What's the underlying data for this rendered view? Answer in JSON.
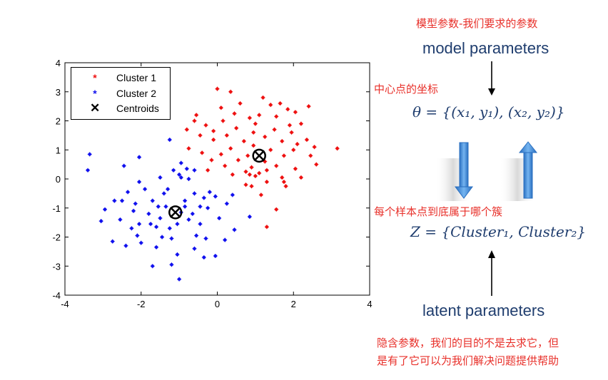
{
  "annotations": {
    "top_red": "模型参数-我们要求的参数",
    "model_parameters": "model parameters",
    "center_coords": "中心点的坐标",
    "theta_equation": "θ = {(x₁, y₁), (x₂, y₂)}",
    "which_cluster": "每个样本点到底属于哪个簇",
    "z_equation": "Z = {Cluster₁,  Cluster₂}",
    "latent_parameters": "latent parameters",
    "hidden_note_line1": "隐含参数，我们的目的不是去求它，但",
    "hidden_note_line2": "是有了它可以为我们解决问题提供帮助"
  },
  "colors": {
    "red_text": "#e8302a",
    "navy_text": "#1f3d6e",
    "cluster1": "#ee1111",
    "cluster2": "#1111ee",
    "arrow_blue": "#3a86d6"
  },
  "chart_data": {
    "type": "scatter",
    "title": "",
    "xlabel": "",
    "ylabel": "",
    "xlim": [
      -4,
      4
    ],
    "ylim": [
      -4,
      4
    ],
    "xticks": [
      "-4",
      "-2",
      "0",
      "2",
      "4"
    ],
    "yticks": [
      "4",
      "3",
      "2",
      "1",
      "0",
      "-1",
      "-2",
      "-3",
      "-4"
    ],
    "legend_position": "top-left",
    "legend": [
      "Cluster 1",
      "Cluster 2",
      "Centroids"
    ],
    "series": [
      {
        "name": "Cluster 1",
        "color": "#ee1111",
        "points": [
          [
            0.0,
            3.1
          ],
          [
            0.35,
            3.0
          ],
          [
            1.2,
            2.8
          ],
          [
            0.6,
            2.6
          ],
          [
            1.4,
            2.55
          ],
          [
            1.65,
            2.6
          ],
          [
            1.85,
            2.4
          ],
          [
            2.4,
            2.5
          ],
          [
            0.1,
            2.45
          ],
          [
            -0.55,
            2.2
          ],
          [
            0.45,
            2.25
          ],
          [
            1.1,
            2.2
          ],
          [
            2.05,
            2.3
          ],
          [
            0.85,
            2.1
          ],
          [
            1.55,
            2.15
          ],
          [
            -0.6,
            2.0
          ],
          [
            0.15,
            2.0
          ],
          [
            -0.3,
            1.85
          ],
          [
            1.0,
            1.9
          ],
          [
            1.9,
            1.85
          ],
          [
            2.2,
            1.9
          ],
          [
            -0.8,
            1.7
          ],
          [
            0.5,
            1.75
          ],
          [
            1.5,
            1.7
          ],
          [
            -0.1,
            1.65
          ],
          [
            0.95,
            1.6
          ],
          [
            1.95,
            1.6
          ],
          [
            -0.45,
            1.5
          ],
          [
            0.25,
            1.5
          ],
          [
            1.25,
            1.45
          ],
          [
            2.35,
            1.35
          ],
          [
            -0.1,
            1.35
          ],
          [
            0.7,
            1.3
          ],
          [
            1.7,
            1.3
          ],
          [
            2.1,
            1.2
          ],
          [
            2.55,
            1.1
          ],
          [
            -0.75,
            1.05
          ],
          [
            0.35,
            1.05
          ],
          [
            0.95,
            1.15
          ],
          [
            1.4,
            1.0
          ],
          [
            2.0,
            1.0
          ],
          [
            3.15,
            1.05
          ],
          [
            -0.4,
            0.9
          ],
          [
            0.1,
            0.85
          ],
          [
            0.8,
            0.8
          ],
          [
            1.75,
            0.8
          ],
          [
            2.45,
            0.8
          ],
          [
            -0.15,
            0.65
          ],
          [
            0.55,
            0.65
          ],
          [
            1.25,
            0.6
          ],
          [
            2.6,
            0.5
          ],
          [
            0.2,
            0.45
          ],
          [
            0.9,
            0.4
          ],
          [
            1.55,
            0.45
          ],
          [
            -0.25,
            0.3
          ],
          [
            0.75,
            0.25
          ],
          [
            1.3,
            0.3
          ],
          [
            2.05,
            0.35
          ],
          [
            0.4,
            0.15
          ],
          [
            1.0,
            0.1
          ],
          [
            1.7,
            0.05
          ],
          [
            2.2,
            0.05
          ],
          [
            1.3,
            -0.1
          ],
          [
            0.9,
            -0.25
          ],
          [
            1.75,
            -0.1
          ],
          [
            1.15,
            -0.55
          ],
          [
            1.55,
            -1.05
          ],
          [
            1.3,
            -1.65
          ],
          [
            0.75,
            -0.2
          ],
          [
            1.8,
            -0.25
          ],
          [
            0.85,
            0.15
          ],
          [
            1.1,
            0.2
          ]
        ]
      },
      {
        "name": "Cluster 2",
        "color": "#1111ee",
        "points": [
          [
            -3.35,
            0.85
          ],
          [
            -3.4,
            0.3
          ],
          [
            -1.25,
            1.35
          ],
          [
            -2.05,
            0.75
          ],
          [
            -0.95,
            0.55
          ],
          [
            -0.8,
            0.35
          ],
          [
            -1.15,
            0.3
          ],
          [
            -0.6,
            0.3
          ],
          [
            -2.45,
            0.45
          ],
          [
            -1.0,
            0.15
          ],
          [
            -1.5,
            0.05
          ],
          [
            -0.75,
            0.0
          ],
          [
            -0.2,
            -0.45
          ],
          [
            -0.05,
            -0.6
          ],
          [
            -0.6,
            -0.5
          ],
          [
            -2.05,
            -0.1
          ],
          [
            -2.35,
            -0.45
          ],
          [
            -2.15,
            -0.85
          ],
          [
            -2.7,
            -0.75
          ],
          [
            -2.95,
            -1.05
          ],
          [
            -1.3,
            -0.35
          ],
          [
            -0.45,
            -0.95
          ],
          [
            -1.7,
            -0.75
          ],
          [
            -0.85,
            -0.75
          ],
          [
            -2.2,
            -1.1
          ],
          [
            -1.8,
            -1.2
          ],
          [
            -1.35,
            -0.95
          ],
          [
            -0.25,
            -1.0
          ],
          [
            0.25,
            -0.85
          ],
          [
            0.4,
            -0.55
          ],
          [
            -3.05,
            -1.45
          ],
          [
            -2.55,
            -1.4
          ],
          [
            -1.5,
            -1.35
          ],
          [
            -0.95,
            -1.15
          ],
          [
            -0.75,
            -1.4
          ],
          [
            -2.25,
            -1.7
          ],
          [
            -1.75,
            -1.55
          ],
          [
            -1.05,
            -1.55
          ],
          [
            -0.45,
            -1.55
          ],
          [
            0.05,
            -1.35
          ],
          [
            0.45,
            -1.75
          ],
          [
            -2.75,
            -2.15
          ],
          [
            -2.1,
            -1.95
          ],
          [
            -1.45,
            -2.0
          ],
          [
            -0.55,
            -1.95
          ],
          [
            -0.3,
            -2.05
          ],
          [
            -1.2,
            -2.05
          ],
          [
            -2.0,
            -2.2
          ],
          [
            -2.4,
            -2.3
          ],
          [
            -1.6,
            -2.35
          ],
          [
            -0.6,
            -2.4
          ],
          [
            0.2,
            -2.1
          ],
          [
            -1.05,
            -2.6
          ],
          [
            -0.35,
            -2.7
          ],
          [
            -1.7,
            -3.0
          ],
          [
            -1.2,
            -2.95
          ],
          [
            -0.05,
            -2.65
          ],
          [
            -1.0,
            -3.45
          ],
          [
            -1.4,
            -0.5
          ],
          [
            -0.85,
            -0.95
          ],
          [
            -1.9,
            -0.35
          ],
          [
            -2.5,
            -0.75
          ],
          [
            -0.65,
            -1.2
          ],
          [
            -1.25,
            -1.7
          ],
          [
            -0.95,
            0.05
          ],
          [
            -1.6,
            -1.65
          ],
          [
            0.85,
            -1.3
          ],
          [
            -0.35,
            -0.65
          ],
          [
            -1.55,
            -0.95
          ],
          [
            -2.05,
            -1.55
          ]
        ]
      },
      {
        "name": "Centroids",
        "color": "#000000",
        "points": [
          [
            1.1,
            0.8
          ],
          [
            -1.1,
            -1.15
          ]
        ]
      }
    ]
  }
}
